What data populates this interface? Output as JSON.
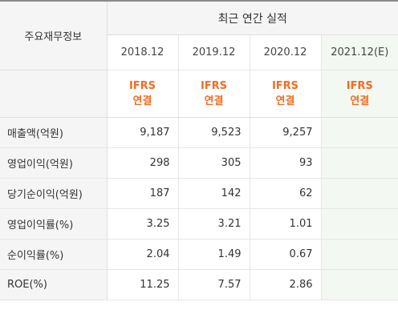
{
  "table": {
    "header_main": "최근 연간 실적",
    "row_header_title": "주요재무정보",
    "years": [
      "2018.12",
      "2019.12",
      "2020.12",
      "2021.12(E)"
    ],
    "basis_top": "IFRS",
    "basis_bottom": "연결",
    "rows": [
      {
        "label": "매출액(억원)",
        "values": [
          "9,187",
          "9,523",
          "9,257",
          ""
        ]
      },
      {
        "label": "영업이익(억원)",
        "values": [
          "298",
          "305",
          "93",
          ""
        ]
      },
      {
        "label": "당기순이익(억원)",
        "values": [
          "187",
          "142",
          "62",
          ""
        ]
      },
      {
        "label": "영업이익률(%)",
        "values": [
          "3.25",
          "3.21",
          "1.01",
          ""
        ]
      },
      {
        "label": "순이익률(%)",
        "values": [
          "2.04",
          "1.49",
          "0.67",
          ""
        ]
      },
      {
        "label": "ROE(%)",
        "values": [
          "11.25",
          "7.57",
          "2.86",
          ""
        ]
      }
    ]
  },
  "colors": {
    "basis_text": "#f36b21",
    "estimate_column_bg": "#f4f8f2",
    "header_bg": "#f5f5f5"
  }
}
